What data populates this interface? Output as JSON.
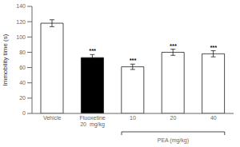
{
  "chart_data": {
    "type": "bar",
    "categories": [
      "Vehicle",
      "Fluoxetine\n20  mg/kg",
      "10",
      "20",
      "40"
    ],
    "values": [
      118,
      73,
      61,
      80,
      78
    ],
    "errors": [
      4.5,
      4.0,
      3.5,
      4.0,
      4.0
    ],
    "colors": [
      "white",
      "black",
      "white",
      "white",
      "white"
    ],
    "annotations": [
      null,
      "***",
      "***",
      "***",
      "***"
    ],
    "group_label": {
      "text": "PEA (mg/kg)",
      "categories": [
        "10",
        "20",
        "40"
      ]
    },
    "ylabel": "Immobility time (s)",
    "ylim": [
      0,
      140
    ],
    "yticks": [
      0,
      20,
      40,
      60,
      80,
      100,
      120,
      140
    ]
  }
}
